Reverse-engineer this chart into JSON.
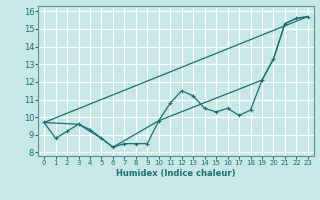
{
  "title": "",
  "xlabel": "Humidex (Indice chaleur)",
  "bg_color": "#c8e8e8",
  "grid_color": "#ffffff",
  "line_color": "#1a7070",
  "xlim": [
    -0.5,
    23.5
  ],
  "ylim": [
    7.8,
    16.3
  ],
  "xticks": [
    0,
    1,
    2,
    3,
    4,
    5,
    6,
    7,
    8,
    9,
    10,
    11,
    12,
    13,
    14,
    15,
    16,
    17,
    18,
    19,
    20,
    21,
    22,
    23
  ],
  "yticks": [
    8,
    9,
    10,
    11,
    12,
    13,
    14,
    15,
    16
  ],
  "line1_x": [
    0,
    1,
    2,
    3,
    4,
    5,
    6,
    7,
    8,
    9,
    10,
    11,
    12,
    13,
    14,
    15,
    16,
    17,
    18,
    19,
    20,
    21,
    22,
    23
  ],
  "line1_y": [
    9.7,
    8.8,
    9.2,
    9.6,
    9.3,
    8.8,
    8.3,
    8.5,
    8.5,
    8.5,
    9.8,
    10.8,
    11.5,
    11.2,
    10.5,
    10.3,
    10.5,
    10.1,
    10.4,
    12.1,
    13.3,
    15.3,
    15.6,
    15.7
  ],
  "line2_x": [
    0,
    3,
    5,
    6,
    10,
    19,
    20,
    21,
    22,
    23
  ],
  "line2_y": [
    9.7,
    9.6,
    8.8,
    8.3,
    9.8,
    12.1,
    13.3,
    15.3,
    15.6,
    15.7
  ],
  "line3_x": [
    0,
    23
  ],
  "line3_y": [
    9.7,
    15.7
  ]
}
